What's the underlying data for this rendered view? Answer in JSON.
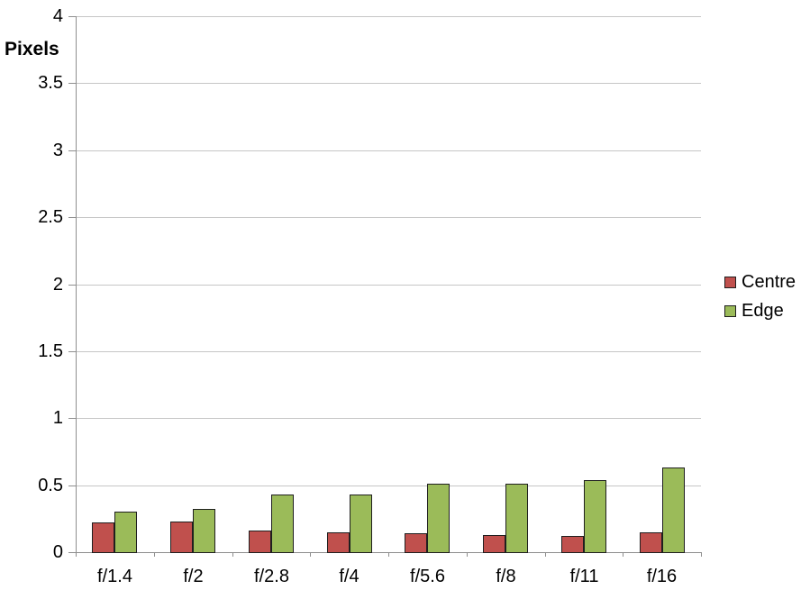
{
  "chart_data": {
    "type": "bar",
    "title": "",
    "ylabel": "Pixels",
    "xlabel": "",
    "categories": [
      "f/1.4",
      "f/2",
      "f/2.8",
      "f/4",
      "f/5.6",
      "f/8",
      "f/11",
      "f/16"
    ],
    "series": [
      {
        "name": "Centre",
        "color": "#C0504D",
        "values": [
          0.22,
          0.23,
          0.16,
          0.15,
          0.14,
          0.13,
          0.12,
          0.15
        ]
      },
      {
        "name": "Edge",
        "color": "#9BBB59",
        "values": [
          0.3,
          0.32,
          0.43,
          0.43,
          0.51,
          0.51,
          0.54,
          0.63
        ]
      }
    ],
    "ylim": [
      0,
      4
    ],
    "ytick_step": 0.5,
    "ytick_labels": [
      "0",
      "0.5",
      "1",
      "1.5",
      "2",
      "2.5",
      "3",
      "3.5",
      "4"
    ],
    "grid": true,
    "legend_position": "right",
    "colors": {
      "gridline": "#c6c6c6",
      "axis": "#8e8e8e",
      "bar_border": "#1f1f1f",
      "text": "#000000",
      "background": "#ffffff"
    }
  }
}
